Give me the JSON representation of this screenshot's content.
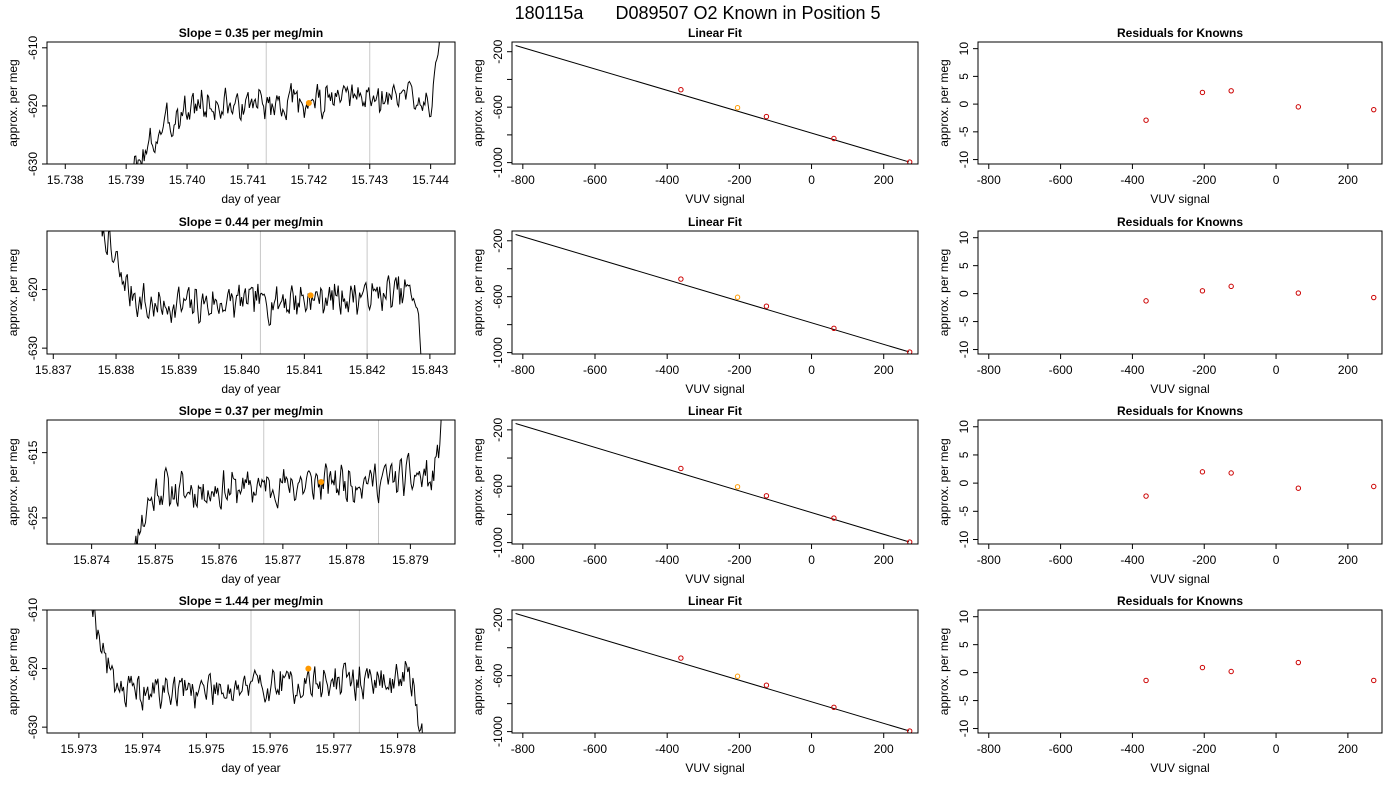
{
  "figure": {
    "title_run": "180115a",
    "title_id": "D089507",
    "title_desc": "O2 Known in Position  5",
    "colors": {
      "trace": "#000000",
      "refline": "#c8c8c8",
      "highlight": "#ff9900",
      "point": "#cc0000",
      "fitline": "#000000"
    }
  },
  "chart_data": [
    {
      "type": "line",
      "row": 0,
      "col": 0,
      "title": "Slope =  0.35  per meg/min",
      "xlabel": "day of year",
      "ylabel": "approx. per meg",
      "xlim": [
        15.7377,
        15.7444
      ],
      "ylim": [
        -630,
        -609
      ],
      "xticks": [
        15.738,
        15.739,
        15.74,
        15.741,
        15.742,
        15.743,
        15.744
      ],
      "xtick_labels": [
        "15.738",
        "15.739",
        "15.740",
        "15.741",
        "15.742",
        "15.743",
        "15.744"
      ],
      "yticks": [
        -610,
        -620,
        -630
      ],
      "ytick_labels": [
        "-610",
        "-620",
        "-630"
      ],
      "x_start": 15.7391,
      "x_end": 15.7442,
      "start_level": -632,
      "mid_level": -619.5,
      "end_level": -604,
      "rise_end_frac": 0.25,
      "end_frac": 0.95,
      "wiggle": 2.3,
      "seed": 3,
      "vlines": [
        15.7413,
        15.743
      ],
      "highlight": {
        "x": 15.742,
        "y": -619.5
      }
    },
    {
      "type": "line",
      "row": 0,
      "col": 1,
      "title": "Linear Fit",
      "xlabel": "VUV signal",
      "ylabel": "approx. per meg",
      "xlim": [
        -830,
        295
      ],
      "ylim": [
        -1010,
        -130
      ],
      "xticks": [
        -800,
        -600,
        -400,
        -200,
        0,
        200
      ],
      "xtick_labels": [
        "-800",
        "-600",
        "-400",
        "-200",
        "0",
        "200"
      ],
      "yticks": [
        -200,
        -400,
        -600,
        -800,
        -1000
      ],
      "ytick_labels": [
        "-200",
        "",
        "-600",
        "",
        "-1000"
      ],
      "fit_line": [
        [
          -820,
          -155
        ],
        [
          270,
          -995
        ]
      ],
      "points": [
        [
          -362,
          -474
        ],
        [
          -205,
          -604
        ],
        [
          -125,
          -668
        ],
        [
          62,
          -826
        ],
        [
          272,
          -996
        ]
      ],
      "highlight_index": 1
    },
    {
      "type": "scatter",
      "row": 0,
      "col": 2,
      "title": "Residuals for Knowns",
      "xlabel": "VUV signal",
      "ylabel": "approx. per meg",
      "xlim": [
        -830,
        295
      ],
      "ylim": [
        -10.8,
        11.2
      ],
      "xticks": [
        -800,
        -600,
        -400,
        -200,
        0,
        200
      ],
      "xtick_labels": [
        "-800",
        "-600",
        "-400",
        "-200",
        "0",
        "200"
      ],
      "yticks": [
        10,
        5,
        0,
        -5,
        -10
      ],
      "ytick_labels": [
        "10",
        "5",
        "0",
        "-5",
        "-10"
      ],
      "points": [
        [
          -362,
          -2.9
        ],
        [
          -205,
          2.1
        ],
        [
          -125,
          2.4
        ],
        [
          62,
          -0.5
        ],
        [
          272,
          -1.0
        ]
      ]
    },
    {
      "type": "line",
      "row": 1,
      "col": 0,
      "title": "Slope =  0.44  per meg/min",
      "xlabel": "day of year",
      "ylabel": "approx. per meg",
      "xlim": [
        15.8369,
        15.8434
      ],
      "ylim": [
        -631,
        -610
      ],
      "xticks": [
        15.837,
        15.838,
        15.839,
        15.84,
        15.841,
        15.842,
        15.843
      ],
      "xtick_labels": [
        "15.837",
        "15.838",
        "15.839",
        "15.840",
        "15.841",
        "15.842",
        "15.843"
      ],
      "yticks": [
        -620,
        -630
      ],
      "ytick_labels": [
        "-620",
        "-630"
      ],
      "x_start": 15.8377,
      "x_end": 15.8429,
      "start_level": -606,
      "mid_level": -622,
      "end_level": -636,
      "rise_end_frac": 0.15,
      "end_frac": 0.97,
      "wiggle": 2.5,
      "seed": 7,
      "vlines": [
        15.8403,
        15.842
      ],
      "highlight": {
        "x": 15.8411,
        "y": -621
      }
    },
    {
      "type": "line",
      "row": 1,
      "col": 1,
      "title": "Linear Fit",
      "xlabel": "VUV signal",
      "ylabel": "approx. per meg",
      "xlim": [
        -830,
        295
      ],
      "ylim": [
        -1010,
        -130
      ],
      "xticks": [
        -800,
        -600,
        -400,
        -200,
        0,
        200
      ],
      "xtick_labels": [
        "-800",
        "-600",
        "-400",
        "-200",
        "0",
        "200"
      ],
      "yticks": [
        -200,
        -400,
        -600,
        -800,
        -1000
      ],
      "ytick_labels": [
        "-200",
        "",
        "-600",
        "",
        "-1000"
      ],
      "fit_line": [
        [
          -820,
          -155
        ],
        [
          270,
          -995
        ]
      ],
      "points": [
        [
          -362,
          -474
        ],
        [
          -205,
          -604
        ],
        [
          -125,
          -668
        ],
        [
          62,
          -826
        ],
        [
          272,
          -996
        ]
      ],
      "highlight_index": 1
    },
    {
      "type": "scatter",
      "row": 1,
      "col": 2,
      "title": "Residuals for Knowns",
      "xlabel": "VUV signal",
      "ylabel": "approx. per meg",
      "xlim": [
        -830,
        295
      ],
      "ylim": [
        -10.8,
        11.2
      ],
      "xticks": [
        -800,
        -600,
        -400,
        -200,
        0,
        200
      ],
      "xtick_labels": [
        "-800",
        "-600",
        "-400",
        "-200",
        "0",
        "200"
      ],
      "yticks": [
        10,
        5,
        0,
        -5,
        -10
      ],
      "ytick_labels": [
        "10",
        "5",
        "0",
        "-5",
        "-10"
      ],
      "points": [
        [
          -362,
          -1.3
        ],
        [
          -205,
          0.5
        ],
        [
          -125,
          1.3
        ],
        [
          62,
          0.1
        ],
        [
          272,
          -0.7
        ]
      ]
    },
    {
      "type": "line",
      "row": 2,
      "col": 0,
      "title": "Slope =  0.37  per meg/min",
      "xlabel": "day of year",
      "ylabel": "approx. per meg",
      "xlim": [
        15.8733,
        15.8797
      ],
      "ylim": [
        -629,
        -610
      ],
      "xticks": [
        15.874,
        15.875,
        15.876,
        15.877,
        15.878,
        15.879
      ],
      "xtick_labels": [
        "15.874",
        "15.875",
        "15.876",
        "15.877",
        "15.878",
        "15.879"
      ],
      "yticks": [
        -615,
        -625
      ],
      "ytick_labels": [
        "-615",
        "-625"
      ],
      "x_start": 15.8746,
      "x_end": 15.8795,
      "start_level": -632,
      "mid_level": -620,
      "end_level": -608,
      "rise_end_frac": 0.12,
      "end_frac": 0.96,
      "wiggle": 2.2,
      "seed": 11,
      "vlines": [
        15.8767,
        15.8785
      ],
      "highlight": {
        "x": 15.8776,
        "y": -619.5
      }
    },
    {
      "type": "line",
      "row": 2,
      "col": 1,
      "title": "Linear Fit",
      "xlabel": "VUV signal",
      "ylabel": "approx. per meg",
      "xlim": [
        -830,
        295
      ],
      "ylim": [
        -1010,
        -130
      ],
      "xticks": [
        -800,
        -600,
        -400,
        -200,
        0,
        200
      ],
      "xtick_labels": [
        "-800",
        "-600",
        "-400",
        "-200",
        "0",
        "200"
      ],
      "yticks": [
        -200,
        -400,
        -600,
        -800,
        -1000
      ],
      "ytick_labels": [
        "-200",
        "",
        "-600",
        "",
        "-1000"
      ],
      "fit_line": [
        [
          -820,
          -155
        ],
        [
          270,
          -995
        ]
      ],
      "points": [
        [
          -362,
          -474
        ],
        [
          -205,
          -604
        ],
        [
          -125,
          -668
        ],
        [
          62,
          -826
        ],
        [
          272,
          -996
        ]
      ],
      "highlight_index": 1
    },
    {
      "type": "scatter",
      "row": 2,
      "col": 2,
      "title": "Residuals for Knowns",
      "xlabel": "VUV signal",
      "ylabel": "approx. per meg",
      "xlim": [
        -830,
        295
      ],
      "ylim": [
        -10.8,
        11.2
      ],
      "xticks": [
        -800,
        -600,
        -400,
        -200,
        0,
        200
      ],
      "xtick_labels": [
        "-800",
        "-600",
        "-400",
        "-200",
        "0",
        "200"
      ],
      "yticks": [
        10,
        5,
        0,
        -5,
        -10
      ],
      "ytick_labels": [
        "10",
        "5",
        "0",
        "-5",
        "-10"
      ],
      "points": [
        [
          -362,
          -2.3
        ],
        [
          -205,
          2.0
        ],
        [
          -125,
          1.8
        ],
        [
          62,
          -0.9
        ],
        [
          272,
          -0.6
        ]
      ]
    },
    {
      "type": "line",
      "row": 3,
      "col": 0,
      "title": "Slope =  1.44  per meg/min",
      "xlabel": "day of year",
      "ylabel": "approx. per meg",
      "xlim": [
        15.9725,
        15.9789
      ],
      "ylim": [
        -631,
        -610
      ],
      "xticks": [
        15.973,
        15.974,
        15.975,
        15.976,
        15.977,
        15.978
      ],
      "xtick_labels": [
        "15.973",
        "15.974",
        "15.975",
        "15.976",
        "15.977",
        "15.978"
      ],
      "yticks": [
        -610,
        -620,
        -630
      ],
      "ytick_labels": [
        "-610",
        "-620",
        "-630"
      ],
      "x_start": 15.9732,
      "x_end": 15.9784,
      "start_level": -608,
      "mid_level": -623,
      "end_level": -634,
      "rise_end_frac": 0.1,
      "end_frac": 0.96,
      "wiggle": 2.4,
      "seed": 19,
      "vlines": [
        15.9757,
        15.9774
      ],
      "highlight": {
        "x": 15.9766,
        "y": -620
      }
    },
    {
      "type": "line",
      "row": 3,
      "col": 1,
      "title": "Linear Fit",
      "xlabel": "VUV signal",
      "ylabel": "approx. per meg",
      "xlim": [
        -830,
        295
      ],
      "ylim": [
        -1010,
        -130
      ],
      "xticks": [
        -800,
        -600,
        -400,
        -200,
        0,
        200
      ],
      "xtick_labels": [
        "-800",
        "-600",
        "-400",
        "-200",
        "0",
        "200"
      ],
      "yticks": [
        -200,
        -400,
        -600,
        -800,
        -1000
      ],
      "ytick_labels": [
        "-200",
        "",
        "-600",
        "",
        "-1000"
      ],
      "fit_line": [
        [
          -820,
          -155
        ],
        [
          270,
          -995
        ]
      ],
      "points": [
        [
          -362,
          -474
        ],
        [
          -205,
          -604
        ],
        [
          -125,
          -668
        ],
        [
          62,
          -826
        ],
        [
          272,
          -996
        ]
      ],
      "highlight_index": 1
    },
    {
      "type": "scatter",
      "row": 3,
      "col": 2,
      "title": "Residuals for Knowns",
      "xlabel": "VUV signal",
      "ylabel": "approx. per meg",
      "xlim": [
        -830,
        295
      ],
      "ylim": [
        -10.8,
        11.2
      ],
      "xticks": [
        -800,
        -600,
        -400,
        -200,
        0,
        200
      ],
      "xtick_labels": [
        "-800",
        "-600",
        "-400",
        "-200",
        "0",
        "200"
      ],
      "yticks": [
        10,
        5,
        0,
        -5,
        -10
      ],
      "ytick_labels": [
        "10",
        "5",
        "0",
        "-5",
        "-10"
      ],
      "points": [
        [
          -362,
          -1.4
        ],
        [
          -205,
          0.9
        ],
        [
          -125,
          0.2
        ],
        [
          62,
          1.8
        ],
        [
          272,
          -1.4
        ]
      ]
    }
  ]
}
